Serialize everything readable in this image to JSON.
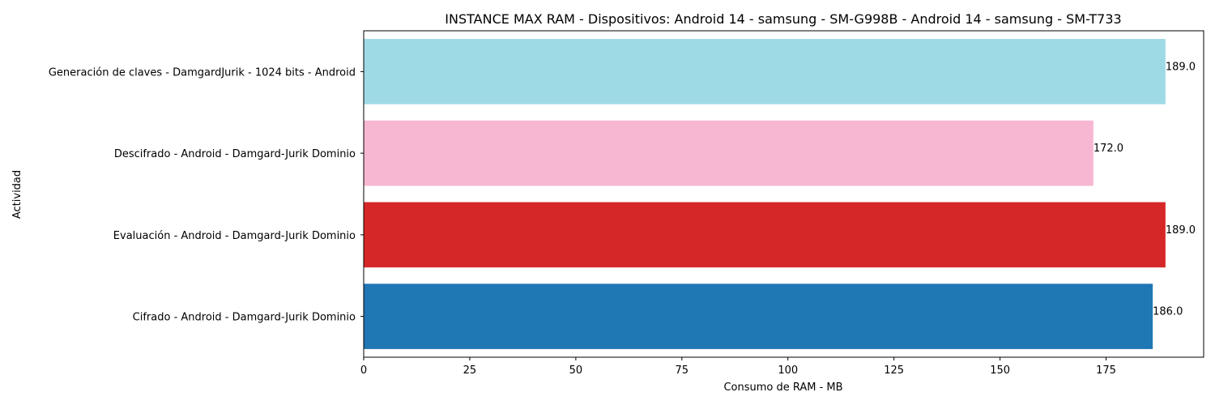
{
  "chart_data": {
    "type": "bar",
    "orientation": "horizontal",
    "title": "INSTANCE MAX RAM - Dispositivos: Android 14 - samsung - SM-G998B - Android 14 - samsung - SM-T733",
    "xlabel": "Consumo de RAM - MB",
    "ylabel": "Actividad",
    "xlim": [
      0,
      198
    ],
    "xticks": [
      0,
      25,
      50,
      75,
      100,
      125,
      150,
      175
    ],
    "grid": false,
    "categories": [
      "Cifrado - Android - Damgard-Jurik Dominio",
      "Evaluación - Android - Damgard-Jurik Dominio",
      "Descifrado - Android - Damgard-Jurik Dominio",
      "Generación de claves - DamgardJurik - 1024 bits - Android"
    ],
    "values": [
      186.0,
      189.0,
      172.0,
      189.0
    ],
    "data_labels": [
      "186.0",
      "189.0",
      "172.0",
      "189.0"
    ],
    "colors": [
      "#1f77b4",
      "#d62728",
      "#f7b6d2",
      "#9edae5"
    ]
  }
}
